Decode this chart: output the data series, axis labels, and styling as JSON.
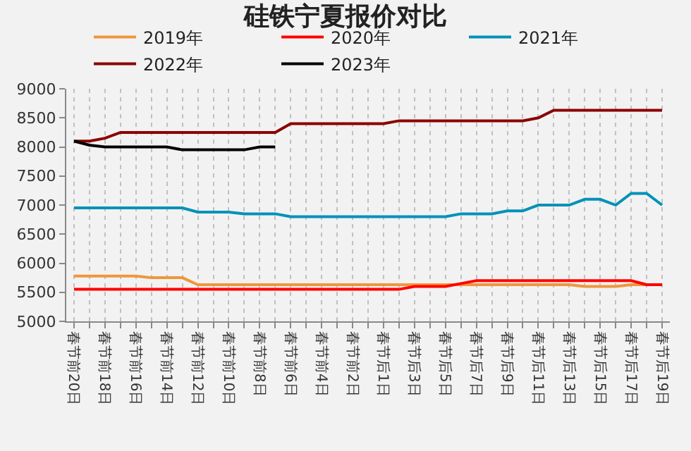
{
  "chart_data": {
    "type": "line",
    "title": "硅铁宁夏报价对比",
    "categories": [
      "春节前20日",
      null,
      "春节前18日",
      null,
      "春节前16日",
      null,
      "春节前14日",
      null,
      "春节前12日",
      null,
      "春节前10日",
      null,
      "春节前8日",
      null,
      "春节前6日",
      null,
      "春节前4日",
      null,
      "春节前2日",
      null,
      "春节后1日",
      null,
      "春节后3日",
      null,
      "春节后5日",
      null,
      "春节后7日",
      null,
      "春节后9日",
      null,
      "春节后11日",
      null,
      "春节后13日",
      null,
      "春节后15日",
      null,
      "春节后17日",
      null,
      "春节后19日"
    ],
    "series": [
      {
        "name": "2019年",
        "color": "#f0963c",
        "values": [
          5780,
          5780,
          5780,
          5780,
          5780,
          5750,
          5750,
          5750,
          5630,
          5630,
          5630,
          5630,
          5630,
          5630,
          5630,
          5630,
          5630,
          5630,
          5630,
          5630,
          5630,
          5630,
          5630,
          5630,
          5630,
          5630,
          5630,
          5630,
          5630,
          5630,
          5630,
          5630,
          5630,
          5600,
          5600,
          5600,
          5630,
          5630,
          null
        ]
      },
      {
        "name": "2020年",
        "color": "#ff0000",
        "values": [
          5550,
          5550,
          5550,
          5550,
          5550,
          5550,
          5550,
          5550,
          5550,
          5550,
          5550,
          5550,
          5550,
          5550,
          5550,
          5550,
          5550,
          5550,
          5550,
          5550,
          5550,
          5550,
          5600,
          5600,
          5600,
          5650,
          5700,
          5700,
          5700,
          5700,
          5700,
          5700,
          5700,
          5700,
          5700,
          5700,
          5700,
          5630,
          5630
        ]
      },
      {
        "name": "2021年",
        "color": "#0092b8",
        "values": [
          6950,
          6950,
          6950,
          6950,
          6950,
          6950,
          6950,
          6950,
          6880,
          6880,
          6880,
          6850,
          6850,
          6850,
          6800,
          6800,
          6800,
          6800,
          6800,
          6800,
          6800,
          6800,
          6800,
          6800,
          6800,
          6850,
          6850,
          6850,
          6900,
          6900,
          7000,
          7000,
          7000,
          7100,
          7100,
          7000,
          7200,
          7200,
          7000
        ]
      },
      {
        "name": "2022年",
        "color": "#8b0000",
        "values": [
          8100,
          8100,
          8150,
          8250,
          8250,
          8250,
          8250,
          8250,
          8250,
          8250,
          8250,
          8250,
          8250,
          8250,
          8400,
          8400,
          8400,
          8400,
          8400,
          8400,
          8400,
          8450,
          8450,
          8450,
          8450,
          8450,
          8450,
          8450,
          8450,
          8450,
          8500,
          8630,
          8630,
          8630,
          8630,
          8630,
          8630,
          8630,
          8630
        ]
      },
      {
        "name": "2023年",
        "color": "#000000",
        "values": [
          8100,
          8030,
          8000,
          8000,
          8000,
          8000,
          8000,
          7950,
          7950,
          7950,
          7950,
          7950,
          8000,
          8000,
          null,
          null,
          null,
          null,
          null,
          null,
          null,
          null,
          null,
          null,
          null,
          null,
          null,
          null,
          null,
          null,
          null,
          null,
          null,
          null,
          null,
          null,
          null,
          null,
          null
        ]
      }
    ],
    "ylim": [
      5000,
      9000
    ],
    "yticks": [
      5000,
      5500,
      6000,
      6500,
      7000,
      7500,
      8000,
      8500,
      9000
    ],
    "grid": "x",
    "legend": "top",
    "marker": "none",
    "line_style": "solid"
  }
}
